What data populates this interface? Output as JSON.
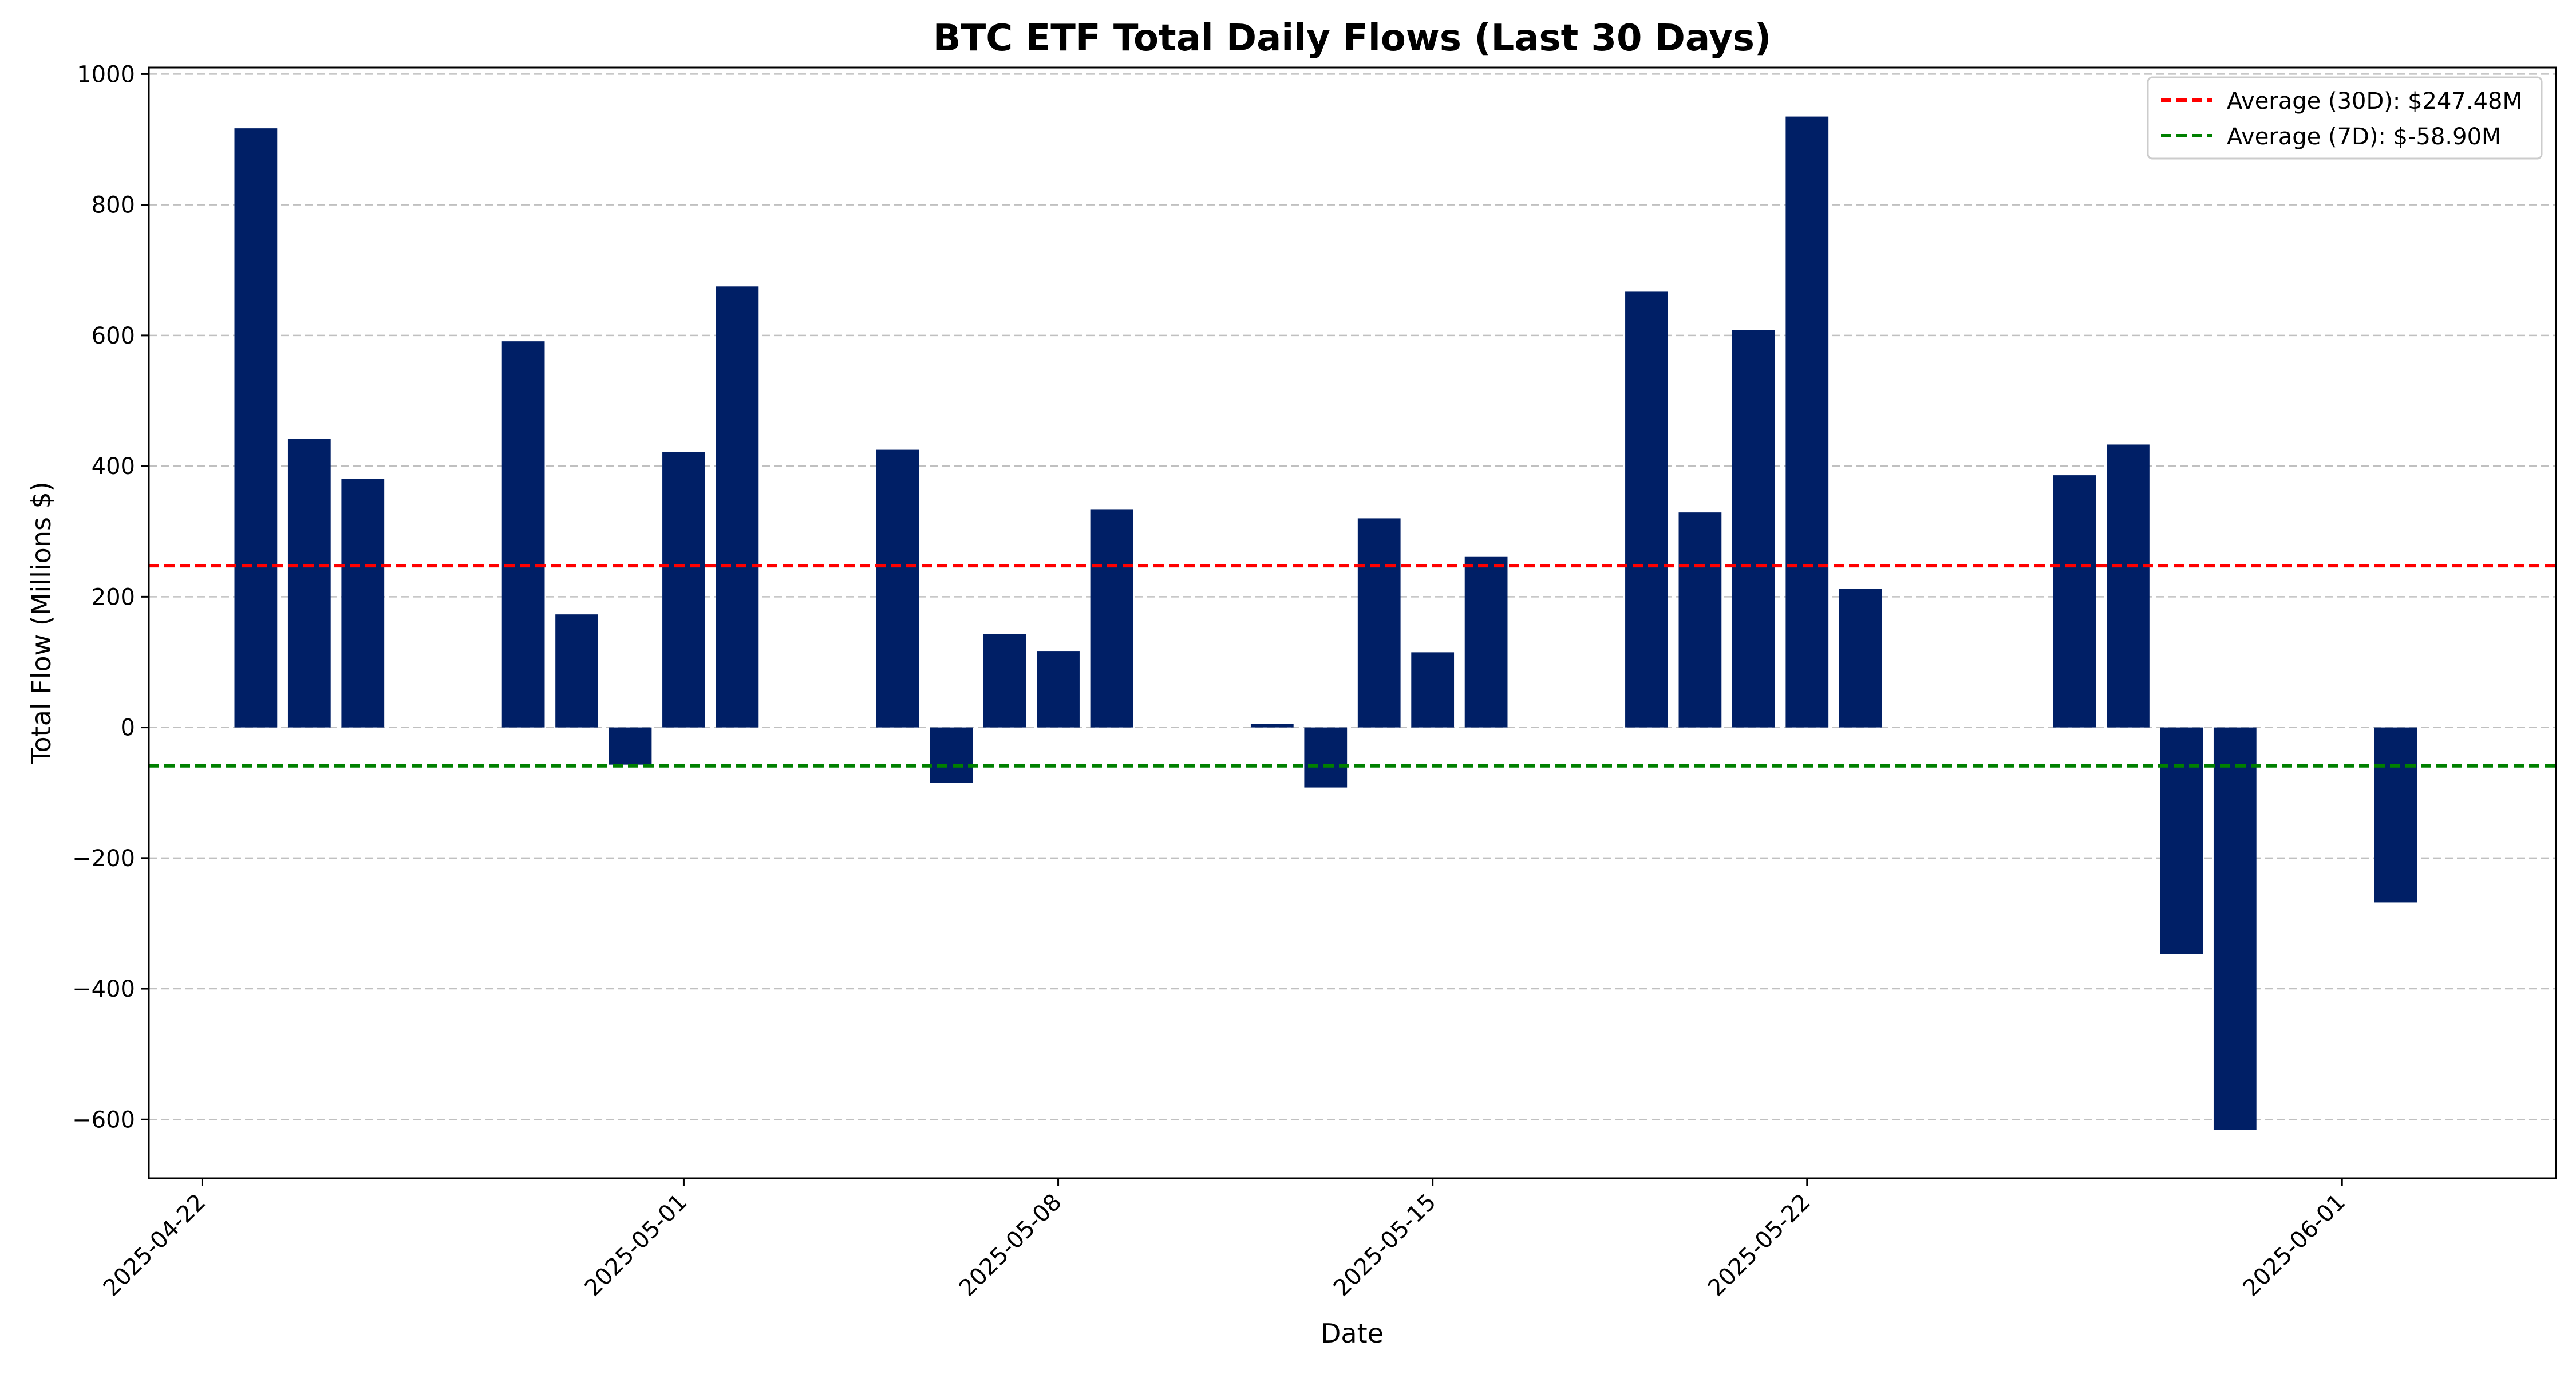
{
  "chart_data": {
    "type": "bar",
    "title": "BTC ETF Total Daily Flows (Last 30 Days)",
    "xlabel": "Date",
    "ylabel": "Total Flow (Millions $)",
    "ylim": [
      -690,
      1010
    ],
    "xlim": [
      "2025-04-21",
      "2025-06-05"
    ],
    "grid": "y-dashed",
    "bar_color": "#001f66",
    "yticks": [
      -600,
      -400,
      -200,
      0,
      200,
      400,
      600,
      800,
      1000
    ],
    "yticklabels": [
      "−600",
      "−400",
      "−200",
      "0",
      "200",
      "400",
      "600",
      "800",
      "1000"
    ],
    "xticks": [
      "2025-04-22",
      "2025-05-01",
      "2025-05-08",
      "2025-05-15",
      "2025-05-22",
      "2025-06-01"
    ],
    "categories": [
      "2025-04-23",
      "2025-04-24",
      "2025-04-25",
      "2025-04-28",
      "2025-04-29",
      "2025-04-30",
      "2025-05-01",
      "2025-05-02",
      "2025-05-05",
      "2025-05-06",
      "2025-05-07",
      "2025-05-08",
      "2025-05-09",
      "2025-05-12",
      "2025-05-13",
      "2025-05-14",
      "2025-05-15",
      "2025-05-16",
      "2025-05-19",
      "2025-05-20",
      "2025-05-21",
      "2025-05-22",
      "2025-05-23",
      "2025-05-27",
      "2025-05-28",
      "2025-05-29",
      "2025-05-30",
      "2025-06-02"
    ],
    "values": [
      917,
      442,
      380,
      591,
      173,
      -57,
      422,
      675,
      425,
      -85,
      143,
      117,
      334,
      5,
      -92,
      320,
      115,
      261,
      667,
      329,
      608,
      935,
      212,
      386,
      433,
      -347,
      -616,
      -268
    ],
    "reference_lines": [
      {
        "label": "Average (30D): $247.48M",
        "value": 247.48,
        "color": "#ff0000"
      },
      {
        "label": "Average (7D): $-58.90M",
        "value": -58.9,
        "color": "#008000"
      }
    ],
    "legend_position": "top-right"
  }
}
